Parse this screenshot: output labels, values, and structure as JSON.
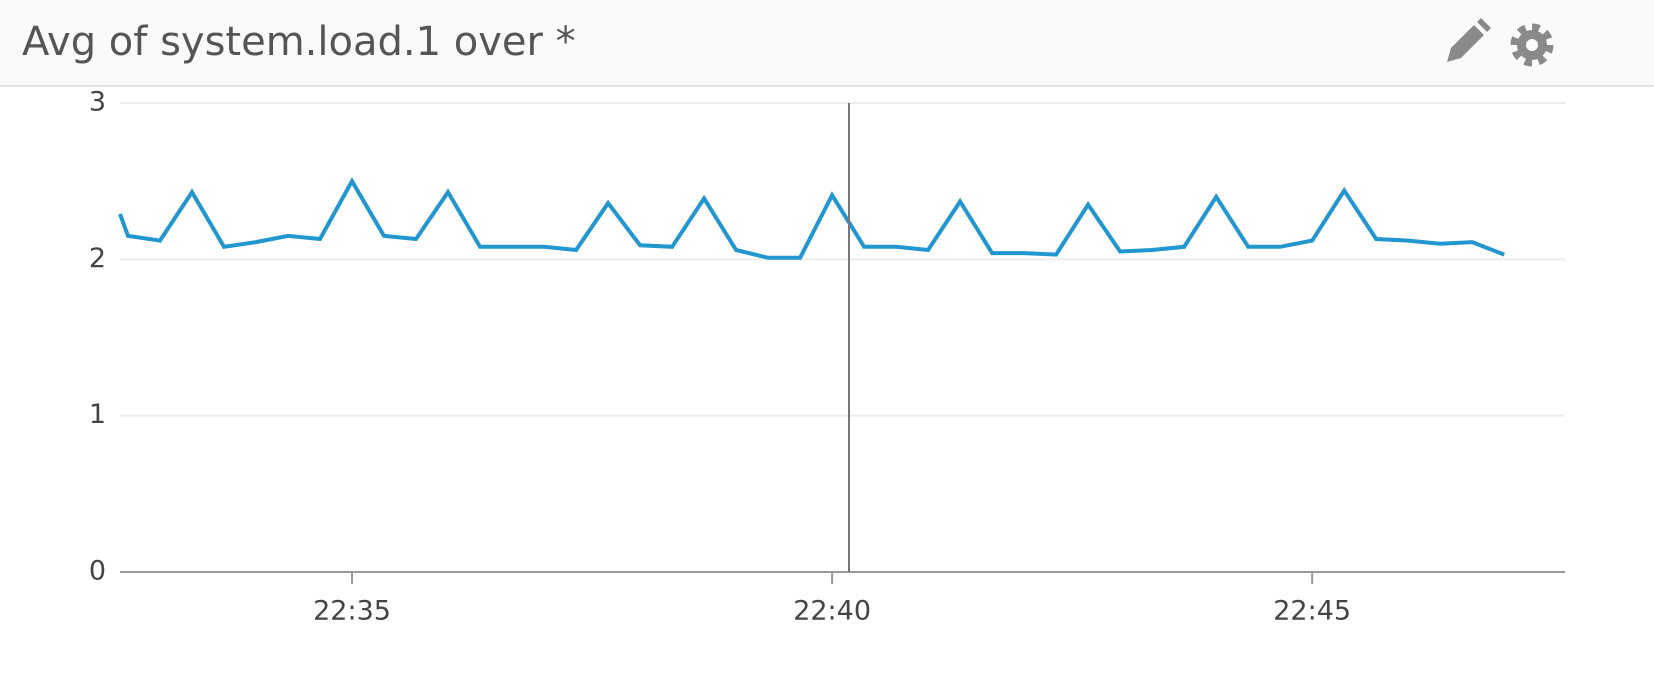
{
  "chart_data": {
    "type": "line",
    "title": "Avg of system.load.1 over *",
    "x": [
      "22:32:35",
      "22:32:40",
      "22:33:00",
      "22:33:20",
      "22:33:40",
      "22:34:00",
      "22:34:20",
      "22:34:40",
      "22:35:00",
      "22:35:20",
      "22:35:40",
      "22:36:00",
      "22:36:20",
      "22:36:40",
      "22:37:00",
      "22:37:20",
      "22:37:40",
      "22:38:00",
      "22:38:20",
      "22:38:40",
      "22:39:00",
      "22:39:20",
      "22:39:40",
      "22:40:00",
      "22:40:20",
      "22:40:40",
      "22:41:00",
      "22:41:20",
      "22:41:40",
      "22:42:00",
      "22:42:20",
      "22:42:40",
      "22:43:00",
      "22:43:20",
      "22:43:40",
      "22:44:00",
      "22:44:20",
      "22:44:40",
      "22:45:00",
      "22:45:20",
      "22:45:40",
      "22:46:00",
      "22:46:20",
      "22:46:40",
      "22:47:00"
    ],
    "values": [
      2.29,
      2.15,
      2.12,
      2.43,
      2.08,
      2.11,
      2.15,
      2.13,
      2.5,
      2.15,
      2.13,
      2.43,
      2.08,
      2.08,
      2.08,
      2.06,
      2.36,
      2.09,
      2.08,
      2.39,
      2.06,
      2.01,
      2.01,
      2.41,
      2.08,
      2.08,
      2.06,
      2.37,
      2.04,
      2.04,
      2.03,
      2.35,
      2.05,
      2.06,
      2.08,
      2.4,
      2.08,
      2.08,
      2.12,
      2.44,
      2.13,
      2.12,
      2.1,
      2.11,
      2.03
    ],
    "color": "#2196cf",
    "xlim": [
      "22:32:35",
      "22:47:38"
    ],
    "xticks": [
      "22:35",
      "22:40",
      "22:45"
    ],
    "ylim": [
      0,
      3
    ],
    "yticks": [
      0,
      1,
      2,
      3
    ],
    "grid": true
  }
}
